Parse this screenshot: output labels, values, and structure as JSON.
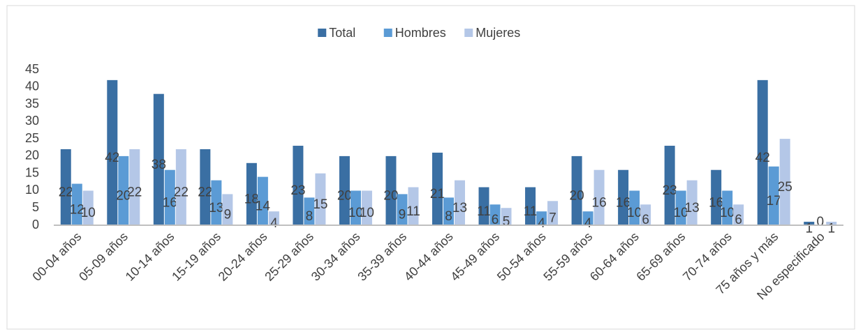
{
  "chart_data": {
    "type": "bar",
    "categories": [
      "00-04 años",
      "05-09 años",
      "10-14 años",
      "15-19 años",
      "20-24 años",
      "25-29 años",
      "30-34 años",
      "35-39 años",
      "40-44 años",
      "45-49 años",
      "50-54 años",
      "55-59 años",
      "60-64 años",
      "65-69 años",
      "70-74 años",
      "75 años y más",
      "No especificado"
    ],
    "series": [
      {
        "name": "Total",
        "color": "#3a6fa3",
        "values": [
          22,
          42,
          38,
          22,
          18,
          23,
          20,
          20,
          21,
          11,
          11,
          20,
          16,
          23,
          16,
          42,
          1
        ]
      },
      {
        "name": "Hombres",
        "color": "#5b9bd5",
        "values": [
          12,
          20,
          16,
          13,
          14,
          8,
          10,
          9,
          8,
          6,
          4,
          4,
          10,
          10,
          10,
          17,
          0
        ]
      },
      {
        "name": "Mujeres",
        "color": "#b4c7e7",
        "values": [
          10,
          22,
          22,
          9,
          4,
          15,
          10,
          11,
          13,
          5,
          7,
          16,
          6,
          13,
          6,
          25,
          1
        ]
      }
    ],
    "ylim": [
      0,
      45
    ],
    "yticks": [
      0,
      5,
      10,
      15,
      20,
      25,
      30,
      35,
      40,
      45
    ],
    "grid": false,
    "legend": "top",
    "data_labels": true
  }
}
